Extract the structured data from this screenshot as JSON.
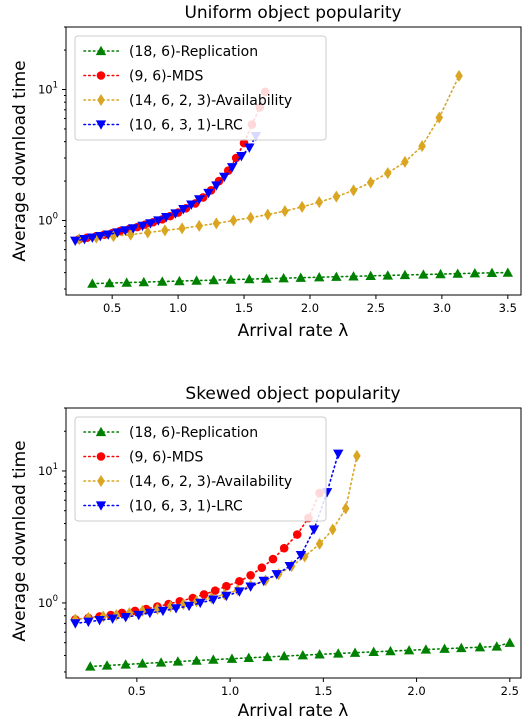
{
  "chart_data": [
    {
      "type": "line",
      "title": "Uniform object popularity",
      "xlabel": "Arrival rate λ",
      "ylabel": "Average download time",
      "xlim": [
        0.15,
        3.6
      ],
      "ylim": [
        0.27,
        30
      ],
      "yscale": "log",
      "x_ticks": [
        "0.5",
        "1.0",
        "1.5",
        "2.0",
        "2.5",
        "3.0",
        "3.5"
      ],
      "y_ticks": [
        "10^0",
        "10^1"
      ],
      "legend_position": "top-left",
      "series": [
        {
          "name": "(18, 6)-Replication",
          "color": "#008000",
          "marker": "triangle-up",
          "x": [
            0.35,
            0.48,
            0.61,
            0.74,
            0.88,
            1.01,
            1.14,
            1.27,
            1.4,
            1.54,
            1.67,
            1.8,
            1.93,
            2.07,
            2.2,
            2.33,
            2.46,
            2.59,
            2.72,
            2.86,
            2.99,
            3.12,
            3.25,
            3.38,
            3.5
          ],
          "y": [
            0.33,
            0.333,
            0.336,
            0.339,
            0.342,
            0.345,
            0.348,
            0.351,
            0.354,
            0.357,
            0.36,
            0.363,
            0.366,
            0.369,
            0.372,
            0.375,
            0.378,
            0.381,
            0.384,
            0.387,
            0.39,
            0.393,
            0.396,
            0.399,
            0.4
          ]
        },
        {
          "name": "(9, 6)-MDS",
          "color": "#ff0000",
          "marker": "circle",
          "x": [
            0.25,
            0.31,
            0.38,
            0.44,
            0.5,
            0.56,
            0.63,
            0.69,
            0.75,
            0.81,
            0.88,
            0.94,
            1.0,
            1.06,
            1.13,
            1.19,
            1.25,
            1.31,
            1.38,
            1.44,
            1.5,
            1.56,
            1.62,
            1.66
          ],
          "y": [
            0.72,
            0.74,
            0.76,
            0.78,
            0.8,
            0.83,
            0.86,
            0.89,
            0.93,
            0.97,
            1.02,
            1.08,
            1.15,
            1.24,
            1.35,
            1.5,
            1.7,
            2.0,
            2.4,
            3.0,
            3.9,
            5.4,
            7.3,
            9.6
          ]
        },
        {
          "name": "(14, 6, 2, 3)-Availability",
          "color": "#daa520",
          "marker": "diamond",
          "x": [
            0.25,
            0.38,
            0.51,
            0.64,
            0.77,
            0.9,
            1.03,
            1.16,
            1.29,
            1.42,
            1.55,
            1.68,
            1.81,
            1.94,
            2.07,
            2.2,
            2.33,
            2.46,
            2.59,
            2.72,
            2.85,
            2.98,
            3.13
          ],
          "y": [
            0.72,
            0.74,
            0.76,
            0.78,
            0.81,
            0.84,
            0.87,
            0.91,
            0.95,
            1.0,
            1.05,
            1.11,
            1.18,
            1.27,
            1.38,
            1.52,
            1.7,
            1.95,
            2.3,
            2.8,
            3.7,
            6.1,
            12.7
          ]
        },
        {
          "name": "(10, 6, 3, 1)-LRC",
          "color": "#0000ff",
          "marker": "triangle-down",
          "x": [
            0.22,
            0.29,
            0.35,
            0.41,
            0.47,
            0.54,
            0.6,
            0.66,
            0.73,
            0.79,
            0.85,
            0.91,
            0.98,
            1.04,
            1.1,
            1.16,
            1.23,
            1.29,
            1.35,
            1.41,
            1.48,
            1.54,
            1.59
          ],
          "y": [
            0.7,
            0.72,
            0.74,
            0.76,
            0.78,
            0.81,
            0.84,
            0.87,
            0.91,
            0.95,
            1.0,
            1.06,
            1.13,
            1.22,
            1.32,
            1.45,
            1.62,
            1.85,
            2.15,
            2.55,
            3.1,
            3.6,
            4.4
          ]
        }
      ]
    },
    {
      "type": "line",
      "title": "Skewed object popularity",
      "xlabel": "Arrival rate λ",
      "ylabel": "Average download time",
      "xlim": [
        0.12,
        2.56
      ],
      "ylim": [
        0.27,
        30
      ],
      "yscale": "log",
      "x_ticks": [
        "0.5",
        "1.0",
        "1.5",
        "2.0",
        "2.5"
      ],
      "y_ticks": [
        "10^0",
        "10^1"
      ],
      "legend_position": "top-left",
      "series": [
        {
          "name": "(18, 6)-Replication",
          "color": "#008000",
          "marker": "triangle-up",
          "x": [
            0.25,
            0.34,
            0.44,
            0.53,
            0.63,
            0.72,
            0.82,
            0.91,
            1.01,
            1.1,
            1.2,
            1.29,
            1.39,
            1.48,
            1.58,
            1.67,
            1.77,
            1.86,
            1.96,
            2.05,
            2.15,
            2.24,
            2.34,
            2.43,
            2.5
          ],
          "y": [
            0.33,
            0.336,
            0.342,
            0.348,
            0.354,
            0.36,
            0.366,
            0.372,
            0.378,
            0.384,
            0.39,
            0.396,
            0.402,
            0.408,
            0.414,
            0.42,
            0.426,
            0.432,
            0.438,
            0.444,
            0.45,
            0.456,
            0.462,
            0.468,
            0.5
          ]
        },
        {
          "name": "(9, 6)-MDS",
          "color": "#ff0000",
          "marker": "circle",
          "x": [
            0.17,
            0.24,
            0.3,
            0.36,
            0.42,
            0.49,
            0.55,
            0.61,
            0.67,
            0.73,
            0.8,
            0.86,
            0.92,
            0.98,
            1.05,
            1.11,
            1.17,
            1.23,
            1.29,
            1.36,
            1.42,
            1.48
          ],
          "y": [
            0.75,
            0.77,
            0.79,
            0.81,
            0.84,
            0.87,
            0.9,
            0.94,
            0.98,
            1.03,
            1.09,
            1.16,
            1.24,
            1.34,
            1.46,
            1.62,
            1.85,
            2.15,
            2.6,
            3.3,
            4.4,
            6.8
          ]
        },
        {
          "name": "(14, 6, 2, 3)-Availability",
          "color": "#daa520",
          "marker": "diamond",
          "x": [
            0.17,
            0.24,
            0.32,
            0.39,
            0.46,
            0.53,
            0.61,
            0.68,
            0.75,
            0.82,
            0.9,
            0.97,
            1.04,
            1.11,
            1.19,
            1.26,
            1.33,
            1.4,
            1.48,
            1.55,
            1.62,
            1.68
          ],
          "y": [
            0.75,
            0.77,
            0.79,
            0.81,
            0.84,
            0.87,
            0.9,
            0.94,
            0.98,
            1.03,
            1.09,
            1.16,
            1.25,
            1.35,
            1.48,
            1.65,
            1.9,
            2.25,
            2.8,
            3.6,
            5.2,
            13.0
          ]
        },
        {
          "name": "(10, 6, 3, 1)-LRC",
          "color": "#0000ff",
          "marker": "triangle-down",
          "x": [
            0.17,
            0.24,
            0.3,
            0.37,
            0.44,
            0.51,
            0.57,
            0.64,
            0.71,
            0.78,
            0.84,
            0.91,
            0.98,
            1.05,
            1.11,
            1.18,
            1.25,
            1.32,
            1.38,
            1.45,
            1.52,
            1.58
          ],
          "y": [
            0.7,
            0.72,
            0.74,
            0.76,
            0.78,
            0.81,
            0.84,
            0.87,
            0.91,
            0.95,
            1.0,
            1.06,
            1.13,
            1.22,
            1.33,
            1.47,
            1.65,
            1.9,
            2.3,
            3.6,
            6.9,
            13.5
          ]
        }
      ]
    }
  ]
}
